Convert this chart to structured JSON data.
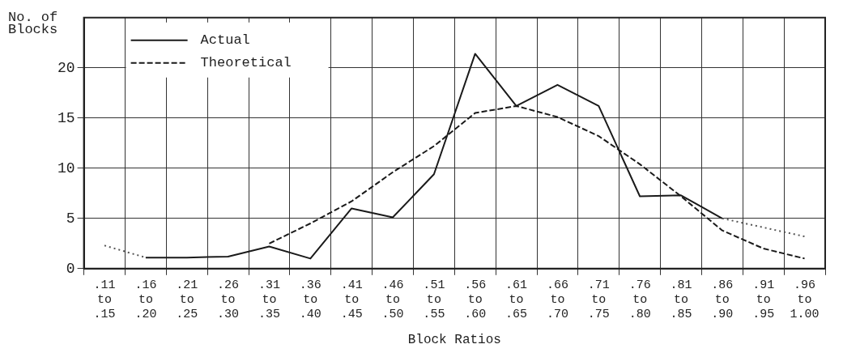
{
  "chart_data": {
    "type": "line",
    "xlabel": "Block Ratios",
    "ylabel": "No. of Blocks",
    "categories": [
      ".11 to .15",
      ".16 to .20",
      ".21 to .25",
      ".26 to .30",
      ".31 to .35",
      ".36 to .40",
      ".41 to .45",
      ".46 to .50",
      ".51 to .55",
      ".56 to .60",
      ".61 to .65",
      ".66 to .70",
      ".71 to .75",
      ".76 to .80",
      ".81 to .85",
      ".86 to .90",
      ".91 to .95",
      ".96 to 1.00"
    ],
    "series": [
      {
        "name": "Actual",
        "color": "#1a1a1a",
        "line_style": "solid",
        "values": [
          null,
          1.1,
          1.1,
          1.2,
          2.2,
          1.0,
          6.0,
          5.1,
          9.4,
          21.4,
          16.2,
          18.3,
          16.2,
          7.2,
          7.3,
          5.0,
          null,
          null
        ]
      },
      {
        "name": "Theoretical",
        "color": "#1a1a1a",
        "line_style": "dashed",
        "values": [
          null,
          null,
          null,
          null,
          2.5,
          4.5,
          6.7,
          9.6,
          12.2,
          15.5,
          16.2,
          15.1,
          13.2,
          10.4,
          7.2,
          3.8,
          2.0,
          1.0
        ]
      },
      {
        "color": "#555555",
        "line_style": "dotted",
        "values": [
          2.3,
          1.1,
          null,
          null,
          null,
          null,
          null,
          null,
          null,
          null,
          null,
          null,
          null,
          null,
          null,
          5.0,
          4.1,
          3.2
        ]
      }
    ],
    "ylim": [
      0,
      25
    ],
    "yticks": [
      0,
      5,
      10,
      15,
      20
    ],
    "grid": true,
    "legend": "top left",
    "marker": "none"
  }
}
